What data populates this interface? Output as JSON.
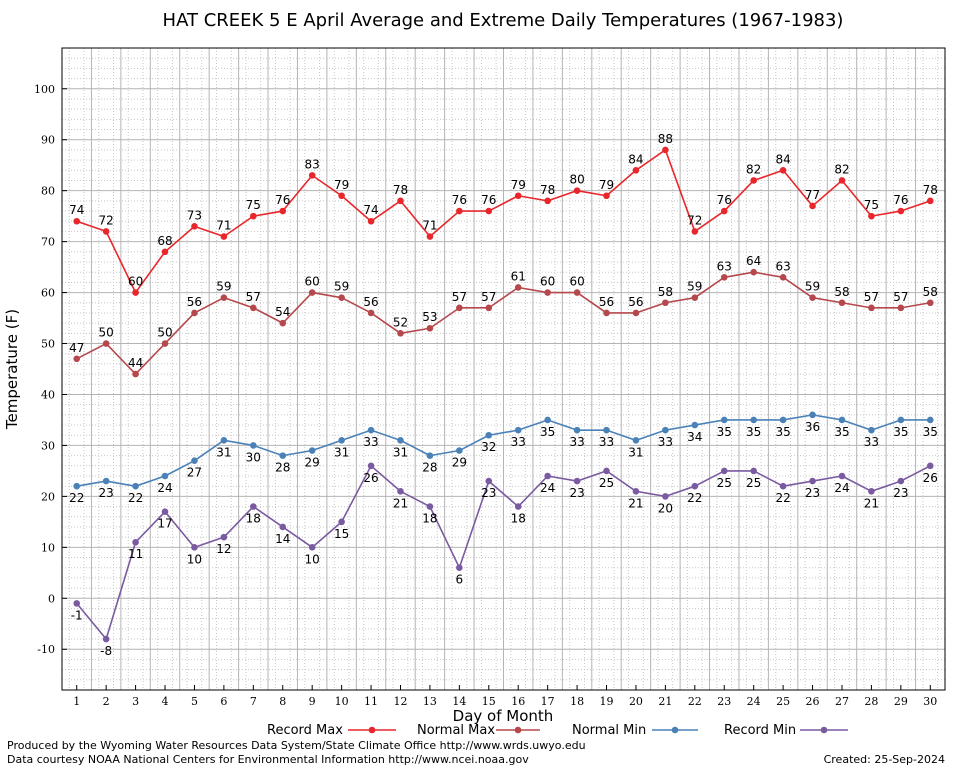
{
  "chart_data": {
    "type": "line",
    "title": "HAT CREEK 5 E April Average and Extreme Daily Temperatures (1967-1983)",
    "xlabel": "Day of Month",
    "ylabel": "Temperature (F)",
    "xlim": [
      0.5,
      30.5
    ],
    "ylim": [
      -18,
      108
    ],
    "yticks": [
      -10,
      0,
      10,
      20,
      30,
      40,
      50,
      60,
      70,
      80,
      90,
      100
    ],
    "x": [
      1,
      2,
      3,
      4,
      5,
      6,
      7,
      8,
      9,
      10,
      11,
      12,
      13,
      14,
      15,
      16,
      17,
      18,
      19,
      20,
      21,
      22,
      23,
      24,
      25,
      26,
      27,
      28,
      29,
      30
    ],
    "grid": true,
    "legend_position": "bottom",
    "series": [
      {
        "name": "Record Max",
        "color": "#e8262b",
        "label_pos": "above",
        "values": [
          74,
          72,
          60,
          68,
          73,
          71,
          75,
          76,
          83,
          79,
          74,
          78,
          71,
          76,
          76,
          79,
          78,
          80,
          79,
          84,
          88,
          72,
          76,
          82,
          84,
          77,
          82,
          75,
          76,
          78
        ]
      },
      {
        "name": "Normal Max",
        "color": "#b5484c",
        "label_pos": "above",
        "values": [
          47,
          50,
          44,
          50,
          56,
          59,
          57,
          54,
          60,
          59,
          56,
          52,
          53,
          57,
          57,
          61,
          60,
          60,
          56,
          56,
          58,
          59,
          63,
          64,
          63,
          59,
          58,
          57,
          57,
          58
        ]
      },
      {
        "name": "Normal Min",
        "color": "#4a82b8",
        "label_pos": "below",
        "values": [
          22,
          23,
          22,
          24,
          27,
          31,
          30,
          28,
          29,
          31,
          33,
          31,
          28,
          29,
          32,
          33,
          35,
          33,
          33,
          31,
          33,
          34,
          35,
          35,
          35,
          36,
          35,
          33,
          35,
          35
        ]
      },
      {
        "name": "Record Min",
        "color": "#7a5aa0",
        "label_pos": "below",
        "values": [
          -1,
          -8,
          11,
          17,
          10,
          12,
          18,
          14,
          10,
          15,
          26,
          21,
          18,
          6,
          23,
          18,
          24,
          23,
          25,
          21,
          20,
          22,
          25,
          25,
          22,
          23,
          24,
          21,
          23,
          26
        ]
      }
    ]
  },
  "footer": {
    "produced_by": "Produced by the Wyoming Water Resources Data System/State Climate Office http://www.wrds.uwyo.edu",
    "courtesy": "Data courtesy NOAA National Centers for Environmental Information http://www.ncei.noaa.gov",
    "created": "Created:  25-Sep-2024"
  }
}
